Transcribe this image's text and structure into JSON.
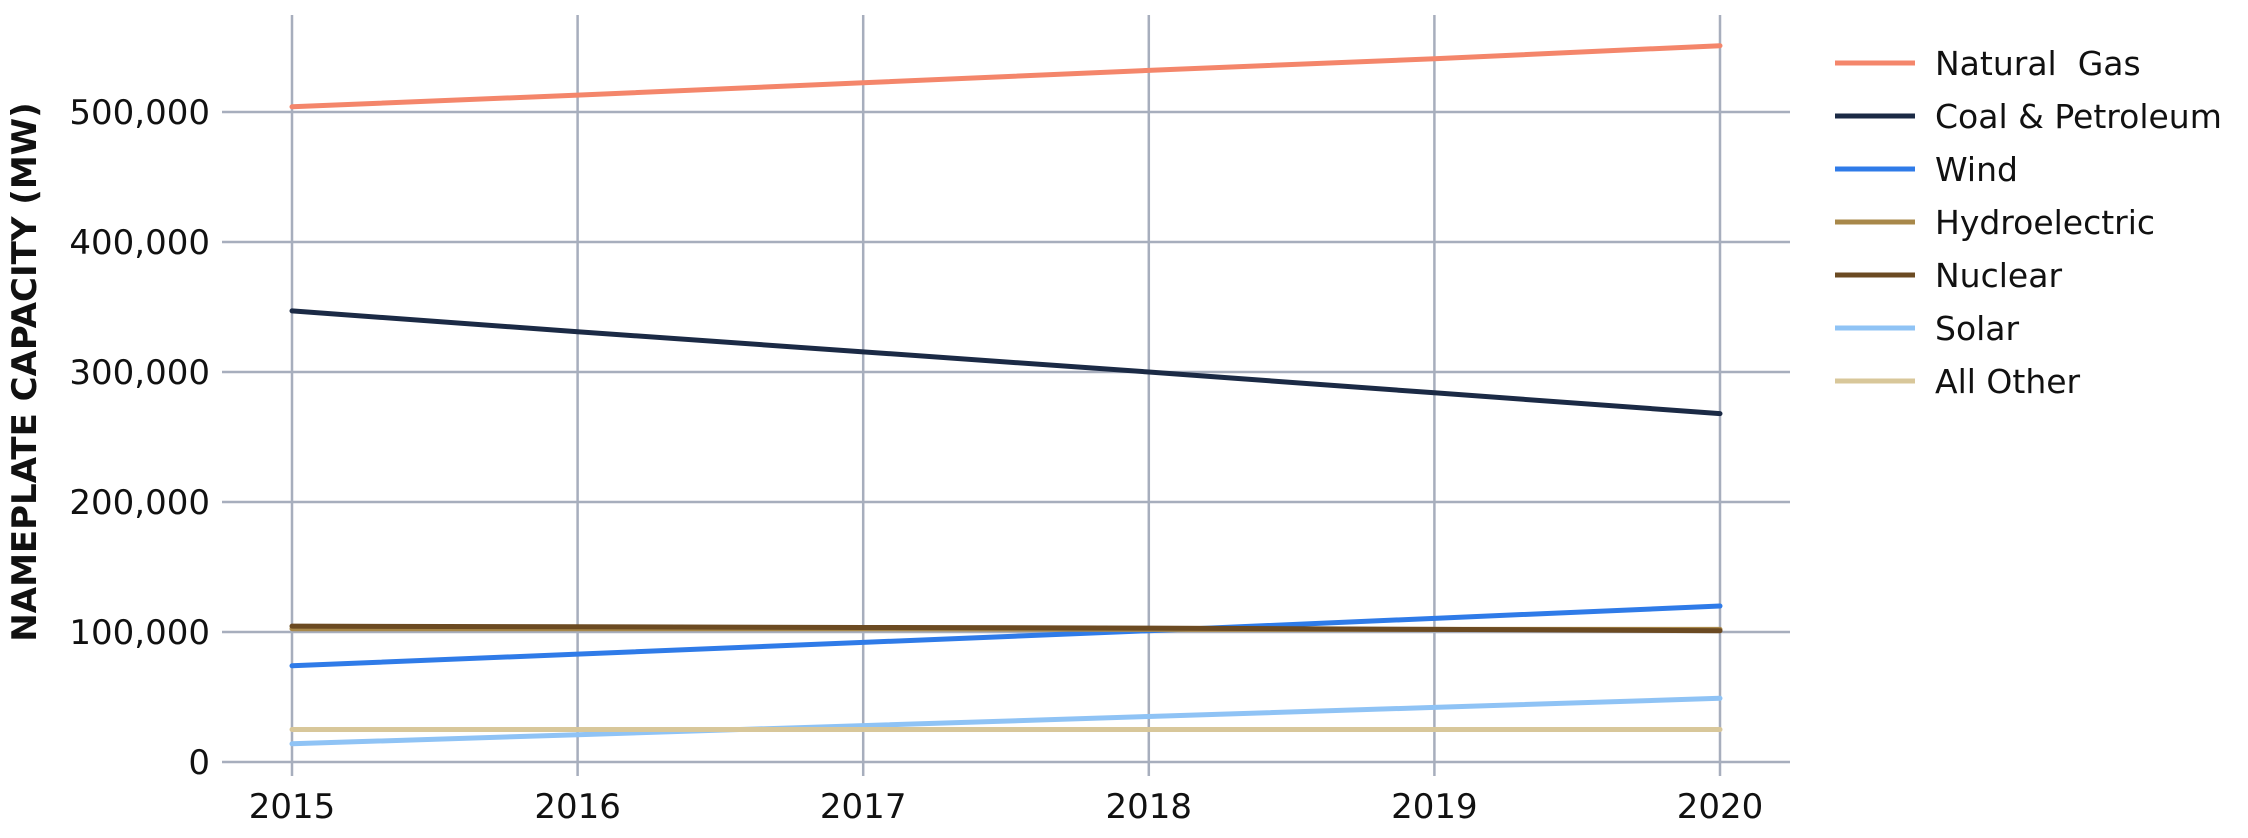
{
  "chart_data": {
    "type": "line",
    "title": "",
    "xlabel": "",
    "ylabel": "NAMEPLATE CAPACITY (MW)",
    "x": [
      "2015",
      "2016",
      "2017",
      "2018",
      "2019",
      "2020"
    ],
    "ylim": [
      0,
      575000
    ],
    "yticks": [
      0,
      100000,
      200000,
      300000,
      400000,
      500000
    ],
    "ytick_labels": [
      "0",
      "100,000",
      "200,000",
      "300,000",
      "400,000",
      "500,000"
    ],
    "grid": true,
    "legend_position": "right",
    "series": [
      {
        "name": "Natural  Gas",
        "color": "#F4866B",
        "values": [
          504000,
          513000,
          522500,
          532000,
          541000,
          551000
        ]
      },
      {
        "name": "Coal & Petroleum",
        "color": "#1B2A45",
        "values": [
          347000,
          331000,
          315500,
          300000,
          284000,
          268000
        ]
      },
      {
        "name": "Wind",
        "color": "#2F7BE8",
        "values": [
          74000,
          83000,
          92000,
          101000,
          110500,
          120000
        ]
      },
      {
        "name": "Hydroelectric",
        "color": "#A8884A",
        "values": [
          102500,
          102500,
          102500,
          102000,
          102000,
          102000
        ]
      },
      {
        "name": "Nuclear",
        "color": "#6B4A22",
        "values": [
          104500,
          104000,
          103500,
          103000,
          102000,
          101000
        ]
      },
      {
        "name": "Solar",
        "color": "#8FC3F5",
        "values": [
          14000,
          21000,
          28000,
          35000,
          42000,
          49000
        ]
      },
      {
        "name": "All Other",
        "color": "#D8C79A",
        "values": [
          25000,
          25000,
          25000,
          25000,
          25000,
          25000
        ]
      }
    ]
  }
}
